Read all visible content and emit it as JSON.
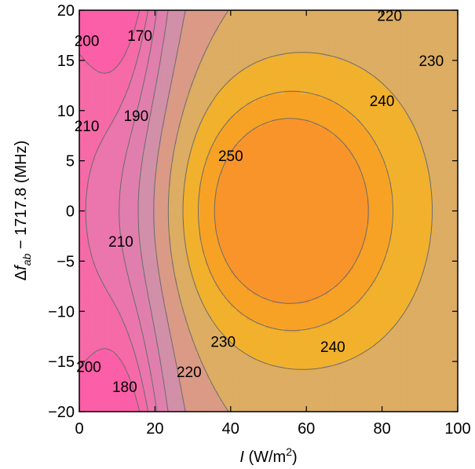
{
  "chart_data": {
    "type": "heatmap",
    "subtype": "filled-contour",
    "x_axis": {
      "label_var": "I",
      "label_unit": " (W/m",
      "label_sup": "2",
      "label_close": ")",
      "range": [
        0,
        100
      ],
      "ticks": [
        0,
        20,
        40,
        60,
        80,
        100
      ],
      "tick_labels": [
        "0",
        "20",
        "40",
        "60",
        "80",
        "100"
      ]
    },
    "y_axis": {
      "label_delta": "Δ",
      "label_var": "f",
      "label_sub": "ab",
      "label_rest": " − 1717.8 (MHz)",
      "range": [
        -20,
        20
      ],
      "ticks": [
        -20,
        -15,
        -10,
        -5,
        0,
        5,
        10,
        15,
        20
      ],
      "tick_labels": [
        "−20",
        "−15",
        "−10",
        "−5",
        "0",
        "5",
        "10",
        "15",
        "20"
      ]
    },
    "contour_levels": [
      170,
      180,
      190,
      200,
      210,
      220,
      230,
      240,
      250
    ],
    "contour_labels": [
      {
        "text": "170",
        "x": 16,
        "y": 17.5
      },
      {
        "text": "180",
        "x": 12,
        "y": -17.5
      },
      {
        "text": "190",
        "x": 15,
        "y": 9.5
      },
      {
        "text": "200",
        "x": 2,
        "y": 17
      },
      {
        "text": "200",
        "x": 2.5,
        "y": -15.5
      },
      {
        "text": "210",
        "x": 2,
        "y": 8.5
      },
      {
        "text": "210",
        "x": 11,
        "y": -3
      },
      {
        "text": "220",
        "x": 82,
        "y": 19.5
      },
      {
        "text": "220",
        "x": 29,
        "y": -16
      },
      {
        "text": "230",
        "x": 93,
        "y": 15
      },
      {
        "text": "230",
        "x": 38,
        "y": -13
      },
      {
        "text": "240",
        "x": 80,
        "y": 11
      },
      {
        "text": "240",
        "x": 67,
        "y": -13.5
      },
      {
        "text": "250",
        "x": 40,
        "y": 5.5
      }
    ],
    "colors": {
      "170": "#fb5fa7",
      "180": "#f56aa7",
      "190": "#ea76ad",
      "200": "#e07fad",
      "210": "#d28fa8",
      "220": "#da9a86",
      "230": "#dcad62",
      "240": "#f2b12d",
      "250": "#f7a225",
      "260": "#f8942a"
    },
    "grid": false
  }
}
